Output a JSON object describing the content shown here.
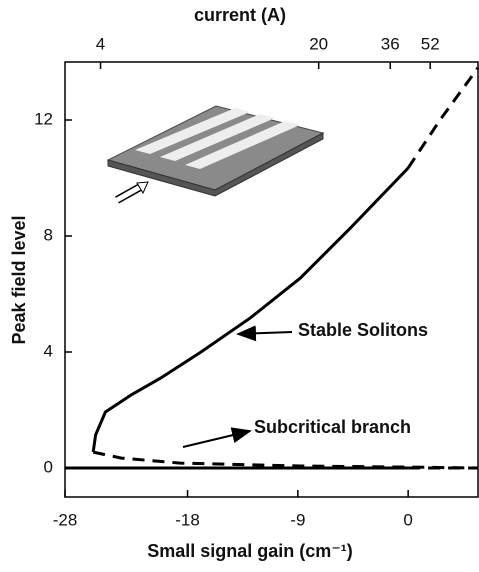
{
  "chart_data": {
    "type": "line",
    "xlabel": "Small signal gain (cm⁻¹)",
    "ylabel": "Peak field level",
    "x2label": "current (A)",
    "xlim": [
      -28,
      5.7
    ],
    "ylim": [
      -1,
      14
    ],
    "xticks": [
      -28,
      -18,
      -9,
      0
    ],
    "yticks": [
      0,
      4,
      8,
      12
    ],
    "x2ticks": [
      {
        "value": -25.1,
        "label": "4"
      },
      {
        "value": -7.3,
        "label": "20"
      },
      {
        "value": -1.46,
        "label": "36"
      },
      {
        "value": 1.8,
        "label": "52"
      }
    ],
    "series": [
      {
        "color": "#000",
        "dash": false,
        "x": [
          -25.7,
          -25.5,
          -24.7,
          -22.6,
          -20.2,
          -16.9,
          -12.9,
          -8.8,
          -4.7,
          0
        ],
        "y": [
          0.55,
          1.14,
          1.93,
          2.52,
          3.1,
          4.0,
          5.17,
          6.55,
          8.28,
          10.34
        ]
      },
      {
        "color": "#000",
        "dash": true,
        "x": [
          0,
          2.6,
          5.7
        ],
        "y": [
          10.34,
          12.0,
          13.8
        ]
      },
      {
        "color": "#000",
        "dash": true,
        "x": [
          -25.7,
          -23.4,
          -18.6,
          -8.8,
          0,
          5.7
        ],
        "y": [
          0.55,
          0.34,
          0.17,
          0.07,
          0.03,
          0.0
        ]
      },
      {
        "color": "#000",
        "dash": false,
        "x": [
          -28,
          0
        ],
        "y": [
          0,
          0
        ]
      },
      {
        "color": "#000",
        "dash": true,
        "x": [
          0,
          5.7
        ],
        "y": [
          0,
          0
        ]
      }
    ],
    "annotations": [
      "Stable Solitons",
      "Subcritical branch"
    ]
  }
}
